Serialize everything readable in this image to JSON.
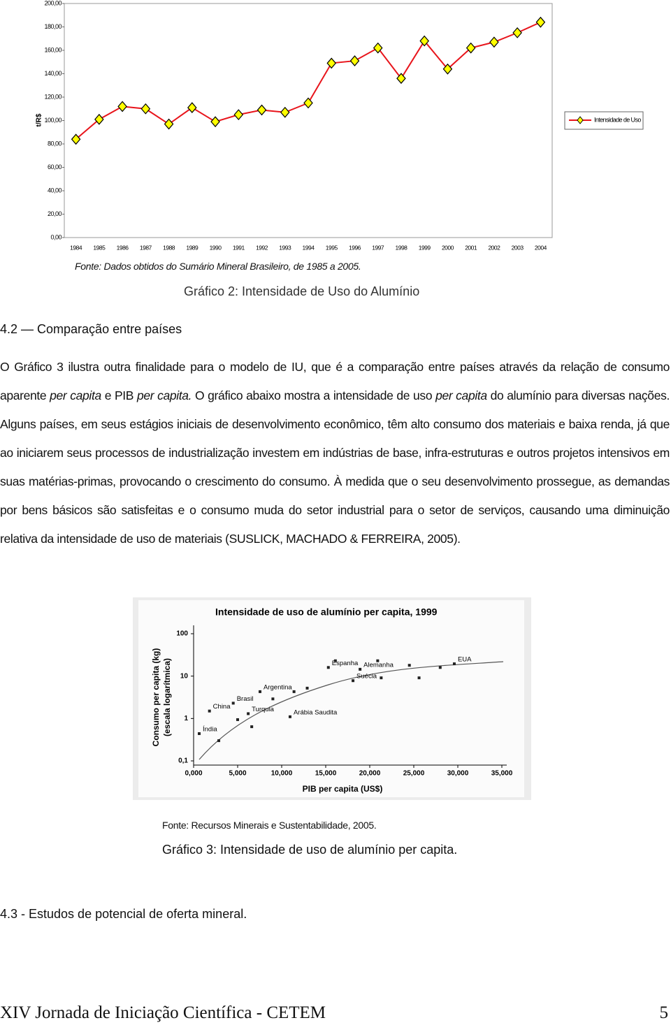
{
  "chart_data": [
    {
      "type": "line",
      "y_label": "t/R$",
      "categories": [
        "1984",
        "1985",
        "1986",
        "1987",
        "1988",
        "1989",
        "1990",
        "1991",
        "1992",
        "1993",
        "1994",
        "1995",
        "1996",
        "1997",
        "1998",
        "1999",
        "2000",
        "2001",
        "2002",
        "2003",
        "2004"
      ],
      "series": [
        {
          "name": "Intensidade de Uso",
          "color": "#e8141b",
          "marker_color": "#ffff00",
          "values": [
            84,
            101,
            112,
            110,
            97,
            111,
            99,
            105,
            109,
            107,
            115,
            149,
            151,
            162,
            136,
            168,
            144,
            162,
            167,
            175,
            184
          ]
        }
      ],
      "ylim": [
        0,
        200
      ],
      "yticks": [
        {
          "value": 0,
          "label": "0,00"
        },
        {
          "value": 20,
          "label": "20,00"
        },
        {
          "value": 40,
          "label": "40,00"
        },
        {
          "value": 60,
          "label": "60,00"
        },
        {
          "value": 80,
          "label": "80,00"
        },
        {
          "value": 100,
          "label": "100,00"
        },
        {
          "value": 120,
          "label": "120,00"
        },
        {
          "value": 140,
          "label": "140,00"
        },
        {
          "value": 160,
          "label": "160,00"
        },
        {
          "value": 180,
          "label": "180,00"
        },
        {
          "value": 200,
          "label": "200,00"
        }
      ],
      "legend": "right",
      "grid": false
    },
    {
      "type": "scatter",
      "title": "Intensidade de uso de alumínio per capita, 1999",
      "y_label": "Consumo per capita (kg)",
      "y_label_note": "(escala logarítmica)",
      "x_label": "PIB per capita (US$)",
      "x": [
        635,
        1800,
        4500,
        6200,
        7540,
        10950,
        15300,
        18900,
        18100,
        29600,
        2860,
        5000,
        9000,
        12900,
        16100,
        21300,
        24500,
        25600,
        20900,
        28000,
        6600,
        11400
      ],
      "values": [
        0.44,
        1.5,
        2.3,
        1.3,
        4.3,
        1.1,
        16,
        14.5,
        7.8,
        19.5,
        0.3,
        0.94,
        2.9,
        5.2,
        23,
        9.1,
        18,
        9.1,
        23,
        16,
        0.64,
        4.3
      ],
      "point_labels": [
        "Índia",
        "China",
        "Brasil",
        "Turquia",
        "Argentina",
        "Arábia Saudita",
        "Espanha",
        "Alemanha",
        "Suécia",
        "EUA",
        null,
        null,
        null,
        null,
        null,
        null,
        null,
        null,
        null,
        null,
        null,
        null
      ],
      "color": "#222222",
      "xlim": [
        0,
        35000
      ],
      "xticks": [
        {
          "value": 0,
          "label": "0,000"
        },
        {
          "value": 5000,
          "label": "5,000"
        },
        {
          "value": 10000,
          "label": "10,000"
        },
        {
          "value": 15000,
          "label": "15,000"
        },
        {
          "value": 20000,
          "label": "20,000"
        },
        {
          "value": 25000,
          "label": "25,000"
        },
        {
          "value": 30000,
          "label": "30,000"
        },
        {
          "value": 35000,
          "label": "35,000"
        }
      ],
      "ylim": [
        0.1,
        100
      ],
      "yticks": [
        {
          "value": 0.1,
          "label": "0,1"
        },
        1,
        10,
        100
      ],
      "log_y": true
    }
  ],
  "source_1": "Fonte: Dados obtidos do Sumário Mineral Brasileiro, de 1985 a 2005.",
  "caption_1": "Gráfico 2: Intensidade de Uso do Alumínio",
  "section_1": "4.2 — Comparação entre países",
  "paragraph": [
    "O Gráfico 3 ilustra outra finalidade para o modelo de IU, que é a comparação entre países através da relação de consumo aparente ",
    "per capita",
    " e PIB ",
    "per capita.",
    " O gráfico abaixo mostra a intensidade de uso ",
    "per capita",
    " do alumínio para diversas nações. Alguns países, em seus estágios iniciais de desenvolvimento econômico, têm alto consumo dos materiais e baixa renda, já que ao iniciarem seus processos de industrialização investem em indústrias de base, infra-estruturas e outros projetos intensivos em suas matérias-primas, provocando o crescimento do consumo. À medida que o seu desenvolvimento prossegue, as demandas por bens básicos são satisfeitas e o consumo muda do setor industrial para o setor de serviços, causando uma diminuição relativa da intensidade de uso de materiais (SUSLICK, MACHADO & FERREIRA, 2005)."
  ],
  "source_2": "Fonte: Recursos Minerais e Sustentabilidade, 2005.",
  "caption_2": "Gráfico 3: Intensidade de uso de alumínio per capita.",
  "section_2": "4.3 - Estudos de potencial de oferta mineral.",
  "footer": {
    "left": "XIV Jornada de Iniciação Científica - CETEM",
    "page": "5"
  }
}
